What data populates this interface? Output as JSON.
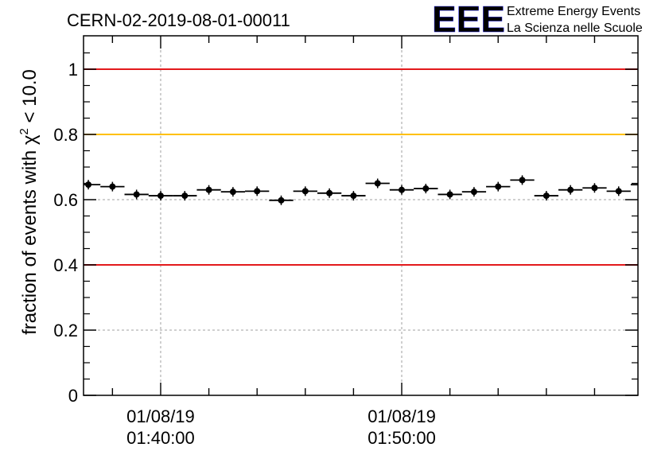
{
  "header": {
    "run_id": "CERN-02-2019-08-01-00011",
    "logo_text": "EEE",
    "logo_line1": "Extreme Energy Events",
    "logo_line2": "La Scienza nelle Scuole"
  },
  "chart_data": {
    "type": "scatter",
    "title": "CERN-02-2019-08-01-00011",
    "ylabel_prefix": "fraction of events with χ",
    "ylabel_sup": "2",
    "ylabel_suffix": " < 10.0",
    "ylim": [
      0,
      1.1
    ],
    "yticks": [
      "0",
      "0.2",
      "0.4",
      "0.6",
      "0.8",
      "1"
    ],
    "ytick_values": [
      0,
      0.2,
      0.4,
      0.6,
      0.8,
      1.0
    ],
    "xlim_minutes": [
      1.8,
      24.8
    ],
    "xticks": [
      {
        "minute": 5,
        "date": "01/08/19",
        "time": "01:40:00"
      },
      {
        "minute": 15,
        "date": "01/08/19",
        "time": "01:50:00"
      }
    ],
    "grid": true,
    "reference_lines": [
      {
        "y": 1.0,
        "color": "#e31a1c"
      },
      {
        "y": 0.8,
        "color": "#ffc000"
      },
      {
        "y": 0.4,
        "color": "#e31a1c"
      }
    ],
    "bin_width_minutes": 1,
    "x_minutes": [
      2,
      3,
      4,
      5,
      6,
      7,
      8,
      9,
      10,
      11,
      12,
      13,
      14,
      15,
      16,
      17,
      18,
      19,
      20,
      21,
      22,
      23,
      24,
      25
    ],
    "values": [
      0.646,
      0.64,
      0.616,
      0.612,
      0.612,
      0.63,
      0.624,
      0.626,
      0.598,
      0.626,
      0.62,
      0.612,
      0.65,
      0.63,
      0.634,
      0.616,
      0.624,
      0.64,
      0.66,
      0.612,
      0.63,
      0.636,
      0.626,
      0.646
    ],
    "marker_color": "#000000"
  }
}
